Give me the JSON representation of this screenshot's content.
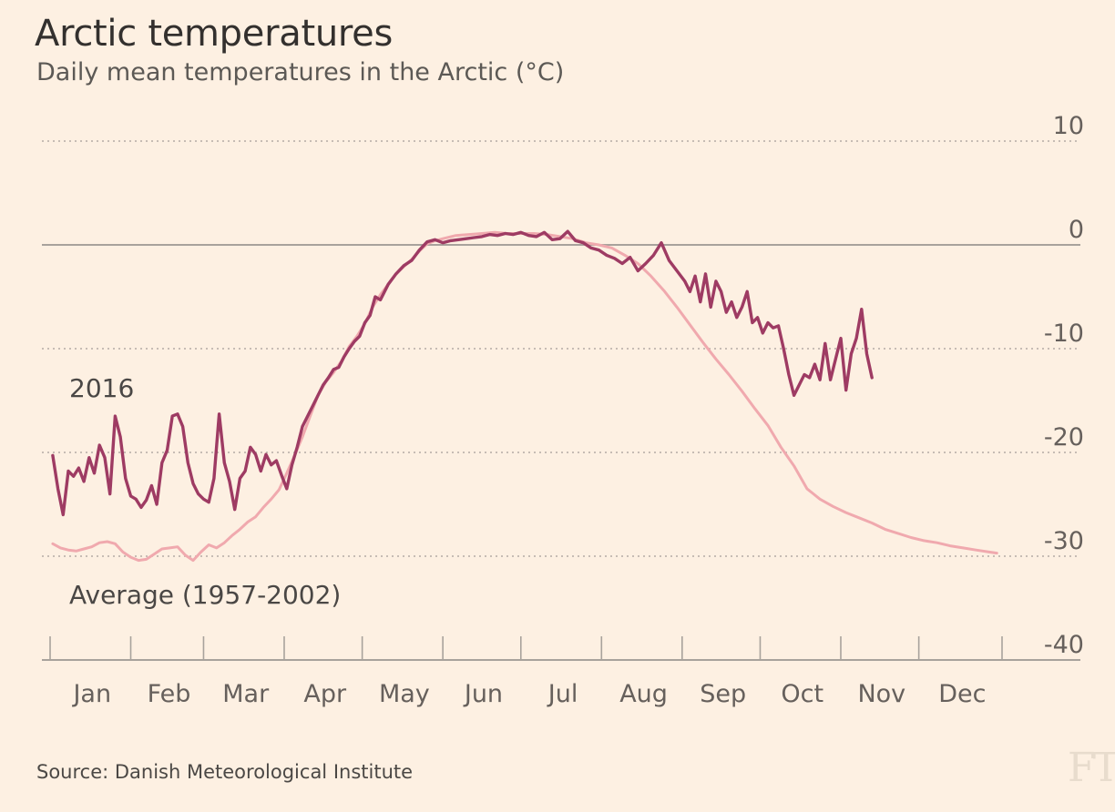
{
  "header": {
    "title": "Arctic temperatures",
    "subtitle": "Daily mean temperatures in the Arctic (°C)"
  },
  "footer": {
    "source": "Source: Danish Meteorological Institute",
    "logo": "FT"
  },
  "colors": {
    "background": "#fdf0e2",
    "series_2016": "#9e3b63",
    "series_average": "#f0a9ae",
    "gridline": "#b3aba4",
    "zero_line": "#a8a29c",
    "axis": "#a8a29c",
    "tick_text": "#66605c"
  },
  "chart_data": {
    "type": "line",
    "title": "Arctic temperatures",
    "subtitle": "Daily mean temperatures in the Arctic (°C)",
    "xlabel": "",
    "ylabel": "",
    "x_unit": "day of year",
    "xlim": [
      0,
      366
    ],
    "ylim": [
      -40,
      10
    ],
    "yticks": [
      10,
      0,
      -10,
      -20,
      -30,
      -40
    ],
    "ytick_labels": [
      "10",
      "0",
      "-10",
      "-20",
      "-30",
      "-40"
    ],
    "months": [
      "Jan",
      "Feb",
      "Mar",
      "Apr",
      "May",
      "Jun",
      "Jul",
      "Aug",
      "Sep",
      "Oct",
      "Nov",
      "Dec"
    ],
    "month_starts": [
      0,
      31,
      59,
      90,
      120,
      151,
      181,
      212,
      243,
      273,
      304,
      334
    ],
    "grid": true,
    "series": [
      {
        "name": "2016",
        "label": "2016",
        "x": [
          1,
          3,
          5,
          7,
          9,
          11,
          13,
          15,
          17,
          19,
          21,
          23,
          25,
          27,
          29,
          31,
          33,
          35,
          37,
          39,
          41,
          43,
          45,
          47,
          49,
          51,
          53,
          55,
          57,
          59,
          61,
          63,
          65,
          67,
          69,
          71,
          73,
          75,
          77,
          79,
          81,
          83,
          85,
          87,
          89,
          91,
          93,
          95,
          97,
          99,
          101,
          103,
          105,
          107,
          109,
          111,
          113,
          115,
          117,
          119,
          121,
          123,
          125,
          127,
          130,
          133,
          136,
          139,
          142,
          145,
          148,
          151,
          154,
          157,
          160,
          163,
          166,
          169,
          172,
          175,
          178,
          181,
          184,
          187,
          190,
          193,
          196,
          199,
          202,
          205,
          208,
          211,
          214,
          217,
          220,
          223,
          226,
          229,
          232,
          235,
          238,
          241,
          244,
          246,
          248,
          250,
          252,
          254,
          256,
          258,
          260,
          262,
          264,
          266,
          268,
          270,
          272,
          274,
          276,
          278,
          280,
          282,
          284,
          286,
          288,
          290,
          292,
          294,
          296,
          298,
          300,
          302,
          304,
          306,
          308,
          310,
          312,
          314,
          316
        ],
        "values": [
          -20.3,
          -23.5,
          -26,
          -21.8,
          -22.3,
          -21.5,
          -22.8,
          -20.5,
          -22,
          -19.3,
          -20.5,
          -24,
          -16.5,
          -18.5,
          -22.5,
          -24.2,
          -24.5,
          -25.3,
          -24.6,
          -23.2,
          -25,
          -21,
          -19.8,
          -16.5,
          -16.3,
          -17.5,
          -21,
          -23,
          -24,
          -24.5,
          -24.8,
          -22.5,
          -16.3,
          -21,
          -22.8,
          -25.5,
          -22.5,
          -21.8,
          -19.5,
          -20.2,
          -21.8,
          -20.2,
          -21.2,
          -20.8,
          -22.2,
          -23.5,
          -21.2,
          -19.5,
          -17.5,
          -16.5,
          -15.5,
          -14.5,
          -13.5,
          -12.8,
          -12,
          -11.8,
          -10.8,
          -10,
          -9.3,
          -8.8,
          -7.5,
          -6.8,
          -5,
          -5.3,
          -3.8,
          -2.8,
          -2,
          -1.5,
          -0.5,
          0.3,
          0.5,
          0.2,
          0.4,
          0.5,
          0.6,
          0.7,
          0.8,
          1,
          0.9,
          1.1,
          1,
          1.2,
          0.9,
          0.8,
          1.2,
          0.5,
          0.6,
          1.3,
          0.4,
          0.2,
          -0.3,
          -0.5,
          -1,
          -1.3,
          -1.8,
          -1.2,
          -2.5,
          -1.8,
          -1,
          0.2,
          -1.5,
          -2.5,
          -3.5,
          -4.5,
          -3,
          -5.5,
          -2.8,
          -6,
          -3.5,
          -4.5,
          -6.5,
          -5.5,
          -7,
          -6,
          -4.5,
          -7.5,
          -7,
          -8.5,
          -7.5,
          -8,
          -7.8,
          -10,
          -12.5,
          -14.5,
          -13.5,
          -12.5,
          -12.8,
          -11.5,
          -13,
          -9.5,
          -13,
          -11,
          -9,
          -14,
          -10.5,
          -9,
          -6.2,
          -10.5,
          -12.8
        ]
      },
      {
        "name": "Average (1957-2002)",
        "label": "Average (1957-2002)",
        "x": [
          1,
          4,
          7,
          10,
          13,
          16,
          19,
          22,
          25,
          28,
          31,
          34,
          37,
          40,
          43,
          46,
          49,
          52,
          55,
          58,
          61,
          64,
          67,
          70,
          73,
          76,
          79,
          82,
          85,
          88,
          91,
          94,
          97,
          100,
          103,
          106,
          109,
          112,
          115,
          118,
          121,
          124,
          127,
          130,
          133,
          136,
          139,
          142,
          145,
          148,
          151,
          156,
          161,
          166,
          171,
          176,
          181,
          186,
          191,
          196,
          201,
          206,
          211,
          216,
          221,
          226,
          231,
          236,
          241,
          246,
          251,
          256,
          261,
          266,
          271,
          276,
          281,
          286,
          291,
          296,
          301,
          306,
          311,
          316,
          321,
          326,
          331,
          336,
          341,
          346,
          351,
          356,
          361,
          364
        ],
        "values": [
          -28.8,
          -29.2,
          -29.4,
          -29.5,
          -29.3,
          -29.1,
          -28.7,
          -28.6,
          -28.8,
          -29.6,
          -30.1,
          -30.4,
          -30.3,
          -29.8,
          -29.3,
          -29.2,
          -29.1,
          -29.9,
          -30.4,
          -29.6,
          -28.9,
          -29.2,
          -28.7,
          -28,
          -27.4,
          -26.7,
          -26.2,
          -25.3,
          -24.5,
          -23.6,
          -22,
          -20.3,
          -18.5,
          -16.5,
          -14.5,
          -13.2,
          -12.3,
          -11.2,
          -9.8,
          -8.8,
          -7.6,
          -6,
          -4.8,
          -3.8,
          -2.8,
          -2.1,
          -1.4,
          -0.6,
          0.1,
          0.4,
          0.6,
          0.9,
          1,
          1.1,
          1.2,
          1.1,
          1.1,
          1.1,
          1,
          0.8,
          0.6,
          0.2,
          0,
          -0.3,
          -1,
          -1.8,
          -3,
          -4.4,
          -6,
          -7.7,
          -9.4,
          -11,
          -12.5,
          -14.1,
          -15.8,
          -17.4,
          -19.5,
          -21.3,
          -23.5,
          -24.5,
          -25.2,
          -25.8,
          -26.3,
          -26.8,
          -27.4,
          -27.8,
          -28.2,
          -28.5,
          -28.7,
          -29,
          -29.2,
          -29.4,
          -29.6,
          -29.7
        ]
      }
    ]
  }
}
